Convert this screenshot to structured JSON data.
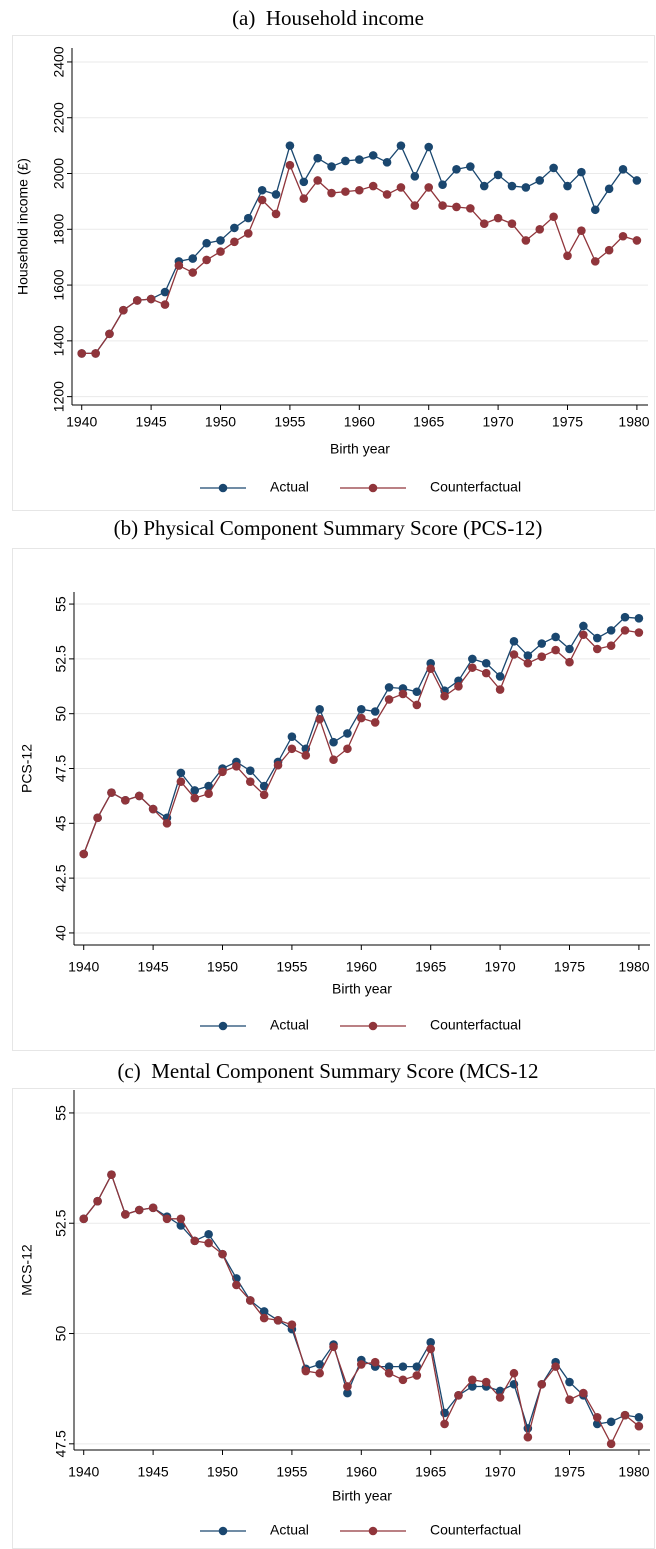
{
  "chart_data": [
    {
      "type": "line",
      "title": "(a)  Household income",
      "xlabel": "Birth year",
      "ylabel": "Household income (£)",
      "x": [
        1940,
        1941,
        1942,
        1943,
        1944,
        1945,
        1946,
        1947,
        1948,
        1949,
        1950,
        1951,
        1952,
        1953,
        1954,
        1955,
        1956,
        1957,
        1958,
        1959,
        1960,
        1961,
        1962,
        1963,
        1964,
        1965,
        1966,
        1967,
        1968,
        1969,
        1970,
        1971,
        1972,
        1973,
        1974,
        1975,
        1976,
        1977,
        1978,
        1979,
        1980
      ],
      "xlim": [
        1939.3,
        1980.8
      ],
      "xticks": [
        1940,
        1945,
        1950,
        1955,
        1960,
        1965,
        1970,
        1975,
        1980
      ],
      "ylim": [
        1170,
        2450
      ],
      "yticks": [
        1200,
        1400,
        1600,
        1800,
        2000,
        2200,
        2400
      ],
      "grid": true,
      "legend": "bottom",
      "series": [
        {
          "name": "Actual",
          "color": "#1a476f",
          "values": [
            1355,
            1355,
            1425,
            1510,
            1545,
            1550,
            1575,
            1685,
            1695,
            1750,
            1760,
            1805,
            1840,
            1940,
            1925,
            2100,
            1970,
            2055,
            2025,
            2045,
            2050,
            2065,
            2040,
            2100,
            1990,
            2095,
            1960,
            2015,
            2025,
            1955,
            1995,
            1955,
            1950,
            1975,
            2020,
            1955,
            2005,
            1870,
            1945,
            2015,
            1975
          ]
        },
        {
          "name": "Counterfactual",
          "color": "#90353b",
          "values": [
            1355,
            1355,
            1425,
            1510,
            1545,
            1550,
            1530,
            1670,
            1645,
            1690,
            1720,
            1755,
            1785,
            1905,
            1855,
            2030,
            1910,
            1975,
            1930,
            1935,
            1940,
            1955,
            1925,
            1950,
            1885,
            1950,
            1885,
            1880,
            1875,
            1820,
            1840,
            1820,
            1760,
            1800,
            1845,
            1705,
            1795,
            1685,
            1725,
            1775,
            1760
          ]
        }
      ]
    },
    {
      "type": "line",
      "title": "(b) Physical Component Summary Score (PCS-12)",
      "xlabel": "Birth year",
      "ylabel": "PCS-12",
      "x": [
        1940,
        1941,
        1942,
        1943,
        1944,
        1945,
        1946,
        1947,
        1948,
        1949,
        1950,
        1951,
        1952,
        1953,
        1954,
        1955,
        1956,
        1957,
        1958,
        1959,
        1960,
        1961,
        1962,
        1963,
        1964,
        1965,
        1966,
        1967,
        1968,
        1969,
        1970,
        1971,
        1972,
        1973,
        1974,
        1975,
        1976,
        1977,
        1978,
        1979,
        1980
      ],
      "xlim": [
        1939.3,
        1980.8
      ],
      "xticks": [
        1940,
        1945,
        1950,
        1955,
        1960,
        1965,
        1970,
        1975,
        1980
      ],
      "ylim": [
        39.45,
        55.55
      ],
      "yticks": [
        40,
        42.5,
        45,
        47.5,
        50,
        52.5,
        55
      ],
      "grid": true,
      "legend": "bottom",
      "series": [
        {
          "name": "Actual",
          "color": "#1a476f",
          "values": [
            43.6,
            45.25,
            46.4,
            46.05,
            46.25,
            45.65,
            45.25,
            47.3,
            46.5,
            46.7,
            47.5,
            47.8,
            47.4,
            46.7,
            47.8,
            48.95,
            48.4,
            50.2,
            48.7,
            49.1,
            50.2,
            50.1,
            51.2,
            51.15,
            51.0,
            52.3,
            51.05,
            51.5,
            52.5,
            52.3,
            51.7,
            53.3,
            52.65,
            53.2,
            53.5,
            52.95,
            54.0,
            53.45,
            53.8,
            54.4,
            54.35
          ]
        },
        {
          "name": "Counterfactual",
          "color": "#90353b",
          "values": [
            43.6,
            45.25,
            46.4,
            46.05,
            46.25,
            45.65,
            45.0,
            46.9,
            46.15,
            46.35,
            47.35,
            47.6,
            46.9,
            46.3,
            47.65,
            48.4,
            48.1,
            49.75,
            47.9,
            48.4,
            49.8,
            49.6,
            50.65,
            50.9,
            50.4,
            52.05,
            50.8,
            51.25,
            52.1,
            51.85,
            51.1,
            52.7,
            52.3,
            52.6,
            52.9,
            52.35,
            53.6,
            52.95,
            53.1,
            53.8,
            53.7
          ]
        }
      ]
    },
    {
      "type": "line",
      "title": "(c)  Mental Component Summary Score (MCS-12",
      "xlabel": "Birth year",
      "ylabel": "MCS-12",
      "x": [
        1940,
        1941,
        1942,
        1943,
        1944,
        1945,
        1946,
        1947,
        1948,
        1949,
        1950,
        1951,
        1952,
        1953,
        1954,
        1955,
        1956,
        1957,
        1958,
        1959,
        1960,
        1961,
        1962,
        1963,
        1964,
        1965,
        1966,
        1967,
        1968,
        1969,
        1970,
        1971,
        1972,
        1973,
        1974,
        1975,
        1976,
        1977,
        1978,
        1979,
        1980
      ],
      "xlim": [
        1939.3,
        1980.8
      ],
      "xticks": [
        1940,
        1945,
        1950,
        1955,
        1960,
        1965,
        1970,
        1975,
        1980
      ],
      "ylim": [
        47.36,
        55.52
      ],
      "yticks": [
        47.5,
        50,
        52.5,
        55
      ],
      "grid": true,
      "legend": "bottom",
      "series": [
        {
          "name": "Actual",
          "color": "#1a476f",
          "values": [
            52.6,
            53.0,
            53.6,
            52.7,
            52.8,
            52.85,
            52.65,
            52.45,
            52.1,
            52.25,
            51.8,
            51.25,
            50.75,
            50.5,
            50.3,
            50.1,
            49.2,
            49.3,
            49.75,
            48.65,
            49.4,
            49.25,
            49.25,
            49.25,
            49.25,
            49.8,
            48.2,
            48.6,
            48.8,
            48.8,
            48.7,
            48.85,
            47.85,
            48.85,
            49.35,
            48.9,
            48.6,
            47.95,
            48.0,
            48.15,
            48.1
          ]
        },
        {
          "name": "Counterfactual",
          "color": "#90353b",
          "values": [
            52.6,
            53.0,
            53.6,
            52.7,
            52.8,
            52.85,
            52.6,
            52.6,
            52.1,
            52.05,
            51.8,
            51.1,
            50.75,
            50.35,
            50.3,
            50.2,
            49.15,
            49.1,
            49.7,
            48.8,
            49.3,
            49.35,
            49.1,
            48.95,
            49.05,
            49.65,
            47.95,
            48.6,
            48.95,
            48.9,
            48.55,
            49.1,
            47.65,
            48.85,
            49.25,
            48.5,
            48.65,
            48.1,
            47.5,
            48.15,
            47.9
          ]
        }
      ]
    }
  ]
}
